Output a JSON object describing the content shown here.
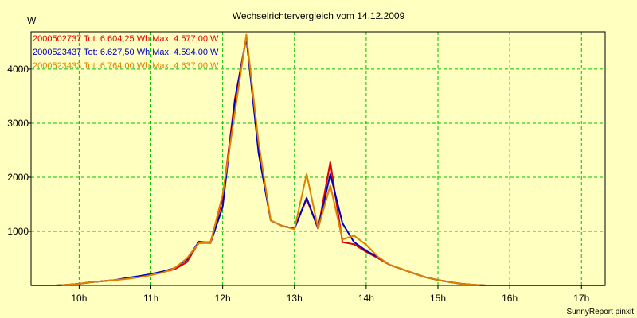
{
  "chart_data": {
    "type": "line",
    "title": "Wechselrichtervergleich vom 14.12.2009",
    "ylabel": "W",
    "xlabel": "",
    "footer": "SunnyReport pinxit",
    "xlim": [
      9.33,
      17.33
    ],
    "ylim": [
      0,
      4690
    ],
    "x_ticks": [
      10,
      11,
      12,
      13,
      14,
      15,
      16,
      17
    ],
    "x_tick_labels": [
      "10h",
      "11h",
      "12h",
      "13h",
      "14h",
      "15h",
      "16h",
      "17h"
    ],
    "y_ticks": [
      1000,
      2000,
      3000,
      4000
    ],
    "y_tick_labels": [
      "1000",
      "2000",
      "3000",
      "4000"
    ],
    "grid": true,
    "legend_position": "top-left",
    "background_color": "#ffffc0",
    "grid_color": "#00c000",
    "x": [
      9.33,
      9.5,
      9.67,
      9.83,
      10.0,
      10.17,
      10.33,
      10.5,
      10.67,
      10.83,
      11.0,
      11.17,
      11.33,
      11.5,
      11.67,
      11.83,
      12.0,
      12.17,
      12.33,
      12.5,
      12.67,
      12.83,
      13.0,
      13.17,
      13.33,
      13.5,
      13.67,
      13.83,
      14.0,
      14.17,
      14.33,
      14.5,
      14.67,
      14.83,
      15.0,
      15.17,
      15.33,
      15.5,
      15.67,
      15.83,
      16.0,
      16.17,
      16.33,
      16.5,
      16.67,
      16.83,
      17.0,
      17.17,
      17.33
    ],
    "series": [
      {
        "name": "2000502737",
        "legend_text": "2000502737  Tot: 6.604,25 Wh  Max: 4.577,00 W",
        "color": "#e00000",
        "values": [
          0,
          0,
          0,
          10,
          30,
          60,
          80,
          100,
          130,
          160,
          200,
          250,
          300,
          430,
          800,
          800,
          1600,
          3450,
          4577,
          2500,
          1200,
          1100,
          1050,
          1600,
          1050,
          2280,
          800,
          760,
          620,
          500,
          380,
          300,
          220,
          150,
          100,
          60,
          30,
          10,
          0,
          0,
          0,
          0,
          0,
          0,
          0,
          0,
          0,
          0,
          0
        ]
      },
      {
        "name": "2000523437",
        "legend_text": "2000523437  Tot: 6.627,50 Wh  Max: 4.594,00 W",
        "color": "#0000c0",
        "values": [
          0,
          0,
          0,
          10,
          30,
          60,
          80,
          100,
          140,
          170,
          210,
          260,
          320,
          480,
          810,
          780,
          1450,
          3400,
          4594,
          2450,
          1200,
          1100,
          1050,
          1620,
          1050,
          2060,
          1150,
          800,
          640,
          520,
          380,
          300,
          220,
          150,
          100,
          60,
          30,
          10,
          0,
          0,
          0,
          0,
          0,
          0,
          0,
          0,
          0,
          0,
          0
        ]
      },
      {
        "name": "2000523433",
        "legend_text": "2000523433  Tot: 6.764,00 Wh  Max: 4.637,00 W",
        "color": "#e08000",
        "values": [
          0,
          0,
          0,
          10,
          30,
          60,
          80,
          100,
          120,
          150,
          190,
          240,
          320,
          500,
          780,
          780,
          1680,
          3200,
          4637,
          2650,
          1200,
          1100,
          1040,
          2060,
          1050,
          1850,
          850,
          920,
          750,
          520,
          380,
          300,
          220,
          150,
          100,
          60,
          30,
          10,
          0,
          0,
          0,
          0,
          0,
          0,
          0,
          0,
          0,
          0,
          0
        ]
      }
    ]
  }
}
